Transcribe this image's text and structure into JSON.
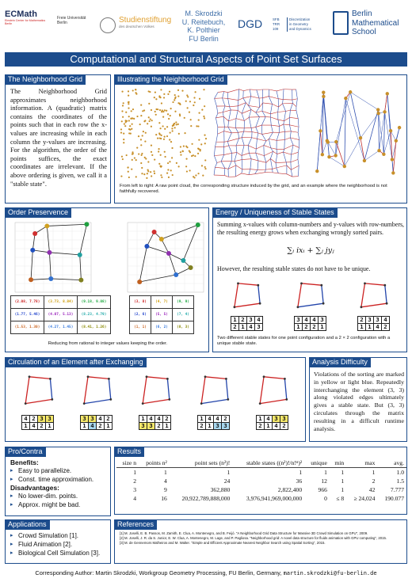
{
  "header": {
    "logo_ecmath": "ECMath",
    "logo_ecmath_sub": "Einstein Center for Mathematics Berlin",
    "logo_fu": "Freie Universität Berlin",
    "logo_stiftung": "Studienstiftung",
    "logo_stiftung_sub": "des deutschen Volkes",
    "authors": [
      "M. Skrodzki",
      "U. Reitebuch,",
      "K. Polthier"
    ],
    "affiliation": "FU Berlin",
    "logo_dgd": "DGD",
    "logo_sfb_lines": [
      "SFB",
      "TRR",
      "109"
    ],
    "logo_sfb_text": [
      "Discretization",
      "in Geometry",
      "and Dynamics"
    ],
    "logo_bms_lines": [
      "Berlin",
      "Mathematical",
      "School"
    ]
  },
  "title": "Computational and Structural Aspects of Point Set Surfaces",
  "neighborhood_grid": {
    "heading": "The Neighborhood Grid",
    "text": "The Neighborhood Grid approximates neighborhood information. A (quadratic) matrix contains the coordinates of the points such that in each row the x-values are increasing while in each column the y-values are increasing. For the algorithm, the order of the points suffices, the exact coordinates are irrelevant. If the above ordering is given, we call it a \"stable state\"."
  },
  "illustrating": {
    "heading": "Illustrating the Neighborhood Grid",
    "caption": "From left to right: A raw point cloud, the corresponding structure induced by the grid, and an example where the neighborhood is not faithfully recovered."
  },
  "order": {
    "heading": "Order Preservence",
    "left_table": [
      [
        "(2.08, 7.78)",
        "(3.73, 8.84)",
        "(9.18, 9.08)"
      ],
      [
        "(1.77, 5.46)",
        "(4.07, 5.13)",
        "(8.23, 4.79)"
      ],
      [
        "(1.53, 1.30)",
        "(4.27, 1.45)",
        "(8.41, 1.26)"
      ]
    ],
    "right_table": [
      [
        "(3, 8)",
        "(4, 7)",
        "(9, 9)"
      ],
      [
        "(2, 6)",
        "(5, 5)",
        "(7, 4)"
      ],
      [
        "(1, 1)",
        "(6, 2)",
        "(8, 3)"
      ]
    ],
    "caption": "Reducing from rational to integer values keeping the order."
  },
  "energy": {
    "heading": "Energy / Uniqueness of Stable States",
    "text": "Summing x-values with column-numbers and y-values with row-numbers, the resulting energy grows when exchanging wrongly sorted pairs.",
    "formula": "∑ᵢ ixᵢ + ∑ⱼ jyⱼ",
    "text2": "However, the resulting stable states do not have to be unique.",
    "perms": [
      [
        [
          "1",
          "2",
          "3",
          "4"
        ],
        [
          "2",
          "1",
          "4",
          "3"
        ]
      ],
      [
        [
          "3",
          "4",
          "4",
          "3"
        ],
        [
          "1",
          "2",
          "2",
          "1"
        ]
      ],
      [
        [
          "2",
          "3",
          "3",
          "4"
        ],
        [
          "1",
          "1",
          "4",
          "2"
        ]
      ]
    ],
    "caption": "Two different stable states for one point configuration and a 2 × 2 configuration with a unique stable state."
  },
  "circulation": {
    "heading": "Circulation of an Element after Exchanging",
    "perms": [
      [
        [
          "4",
          "2",
          "3",
          "3"
        ],
        [
          "1",
          "4",
          "2",
          "1"
        ]
      ],
      [
        [
          "3",
          "3",
          "4",
          "2"
        ],
        [
          "1",
          "4",
          "2",
          "1"
        ]
      ],
      [
        [
          "1",
          "4",
          "4",
          "2"
        ],
        [
          "3",
          "3",
          "2",
          "1"
        ]
      ],
      [
        [
          "1",
          "4",
          "4",
          "2"
        ],
        [
          "2",
          "1",
          "3",
          "3"
        ]
      ],
      [
        [
          "1",
          "4",
          "3",
          "3"
        ],
        [
          "2",
          "1",
          "4",
          "2"
        ]
      ]
    ]
  },
  "analysis": {
    "heading": "Analysis Difficulty",
    "text": "Violations of the sorting are marked in yellow or light blue. Repeatedly interchanging the element (3, 3) along violated edges ultimately gives a stable state. But (3, 3) circulates through the matrix resulting in a difficult runtime analysis."
  },
  "procontra": {
    "heading": "Pro/Contra",
    "benefits_label": "Benefits:",
    "benefits": [
      "Easy to parallelize.",
      "Const. time approximation."
    ],
    "disadvantages_label": "Disadvantages:",
    "disadvantages": [
      "No lower-dim. points.",
      "Approx. might be bad."
    ]
  },
  "applications": {
    "heading": "Applications",
    "items": [
      "Crowd Simulation [1].",
      "Fluid Animation [2].",
      "Biological Cell Simulation [3]."
    ]
  },
  "results": {
    "heading": "Results",
    "columns": [
      "size n",
      "points n²",
      "point sets (n²)!",
      "stable states ((n²)!/n!ⁿ)²",
      "unique",
      "min",
      "max",
      "avg."
    ],
    "rows": [
      [
        "1",
        "1",
        "1",
        "1",
        "1",
        "1",
        "1",
        "1.0"
      ],
      [
        "2",
        "4",
        "24",
        "36",
        "12",
        "1",
        "2",
        "1.5"
      ],
      [
        "3",
        "9",
        "362,880",
        "2,822,400",
        "966",
        "1",
        "42",
        "7.777"
      ],
      [
        "4",
        "16",
        "20,922,789,888,000",
        "3,976,941,969,000,000",
        "0",
        "≤ 8",
        "≥ 24,024",
        "190.077"
      ]
    ]
  },
  "references": {
    "heading": "References",
    "items": [
      "[1]  M. Joselli, E. B. Passos, M. Zamith, E. Clua, A. Montenegro, and B. Feijó. \"A Neighborhood Grid Data Structure for Massive 3D Crowd Simulation on GPU\", 2009.",
      "[2]  M. Joselli, J. R. da S. Junior, E. W. Clua, A. Montenegro, M. Lage, and P. Pagliosa. \"Neighborhood grid: A novel data structure for fluids animation with GPU computing\", 2015.",
      "[3]  M. de Gennemors Malheiros and M. Walter. \"Simple and Efficient Approximate Nearest Neighbor Search using Spatial Sorting\", 2015."
    ]
  },
  "footer": {
    "text": "Corresponding Author: Martin Skrodzki, Workgroup Geometry Processing, FU Berlin, Germany,",
    "email": "martin.skrodzki@fu-berlin.de"
  },
  "colors": {
    "accent": "#1c4c8c",
    "point": "#c8902a",
    "highlight_yellow": "#f5e86a",
    "highlight_blue": "#a8d8f0",
    "arrow_red": "#cc2222",
    "arrow_blue": "#2244aa"
  }
}
